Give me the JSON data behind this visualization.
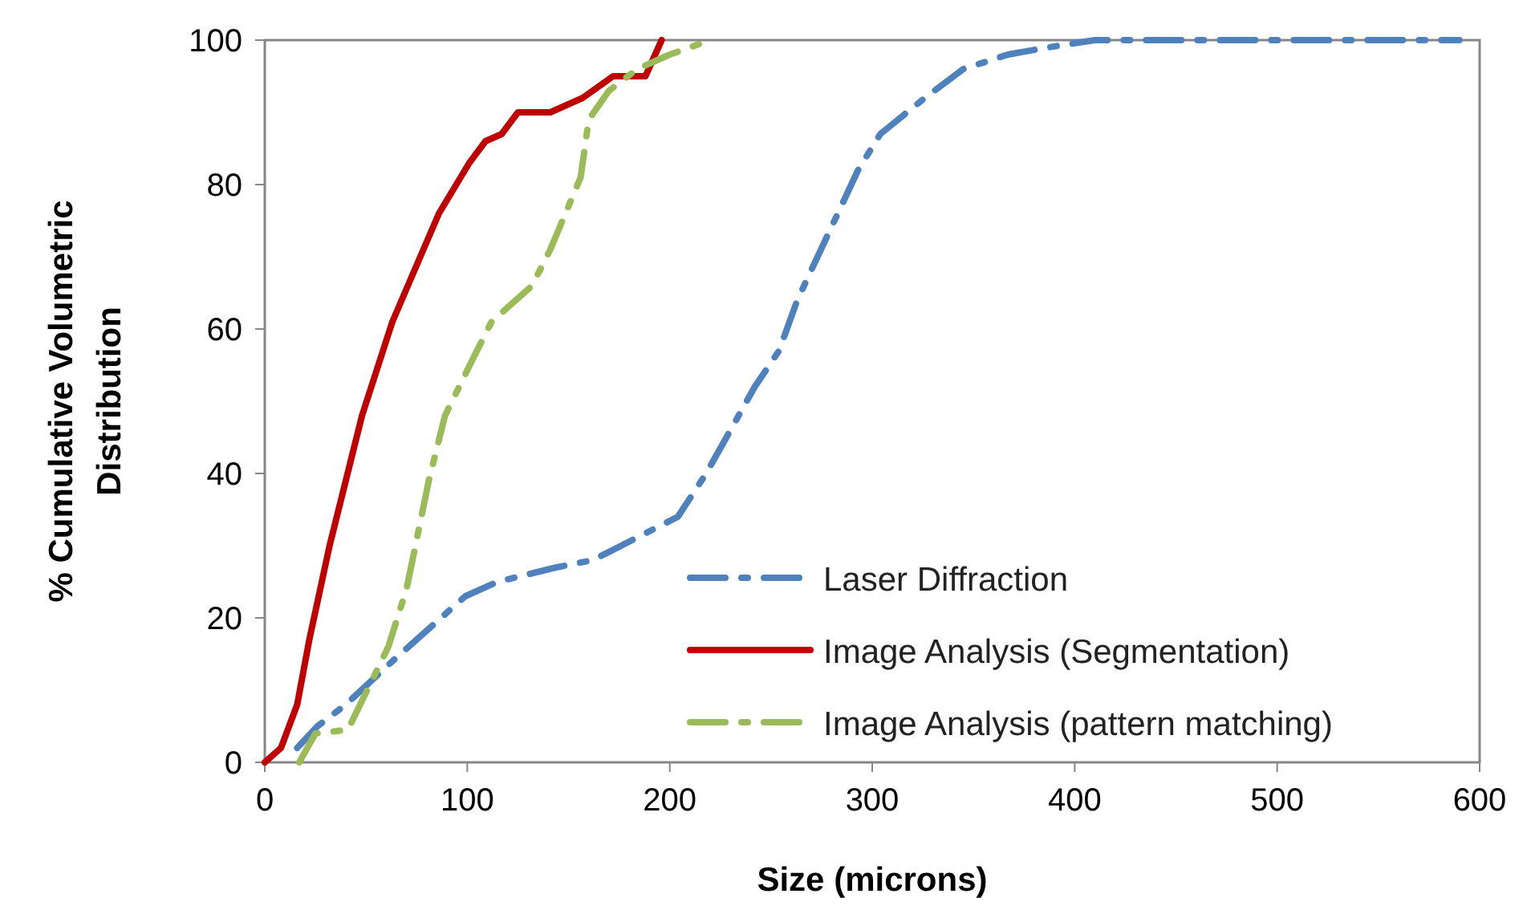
{
  "chart_data": {
    "type": "line",
    "xlabel": "Size (microns)",
    "ylabel": "% Cumulative Volumetric Distribution",
    "xlim": [
      0,
      600
    ],
    "xticks": [
      0,
      100,
      200,
      300,
      400,
      500,
      600
    ],
    "ylim": [
      0,
      100
    ],
    "yticks": [
      0,
      20,
      40,
      60,
      80,
      100
    ],
    "grid": false,
    "legend": "bottom right",
    "marker": "none",
    "series": [
      {
        "name": "Laser Diffraction",
        "color": "#4f81bd",
        "line_style": "dashed",
        "x": [
          16,
          26,
          40,
          63,
          75,
          99,
          115,
          144,
          162,
          190,
          204,
          218,
          230,
          242,
          254,
          263,
          273,
          283,
          293,
          304,
          326,
          345,
          367,
          387,
          410,
          450,
          500,
          550,
          590
        ],
        "values": [
          2,
          5,
          8,
          14,
          17,
          23,
          25,
          27,
          28,
          32,
          34,
          40,
          46,
          52,
          57,
          64,
          70,
          76,
          82,
          87,
          92,
          96,
          98,
          99,
          100,
          100,
          100,
          100,
          100
        ]
      },
      {
        "name": "Image Analysis (Segmentation)",
        "color": "#c00000",
        "line_style": "solid",
        "x": [
          0,
          8,
          16,
          22,
          32,
          48,
          63,
          86,
          101,
          109,
          117,
          125,
          141,
          157,
          172,
          188,
          196
        ],
        "values": [
          0,
          2,
          8,
          17,
          30,
          48,
          61,
          76,
          83,
          86,
          87,
          90,
          90,
          92,
          95,
          95,
          100
        ]
      },
      {
        "name": "Image Analysis (pattern matching)",
        "color": "#9bbb59",
        "line_style": "dashed",
        "x": [
          17,
          25,
          41,
          61,
          70,
          81,
          89,
          103,
          112,
          132,
          141,
          156,
          160,
          170,
          184,
          200,
          220
        ],
        "values": [
          0,
          4,
          4.5,
          16,
          24,
          39,
          48,
          56,
          61,
          66,
          71,
          81,
          89,
          93,
          96,
          98,
          100
        ]
      }
    ]
  }
}
